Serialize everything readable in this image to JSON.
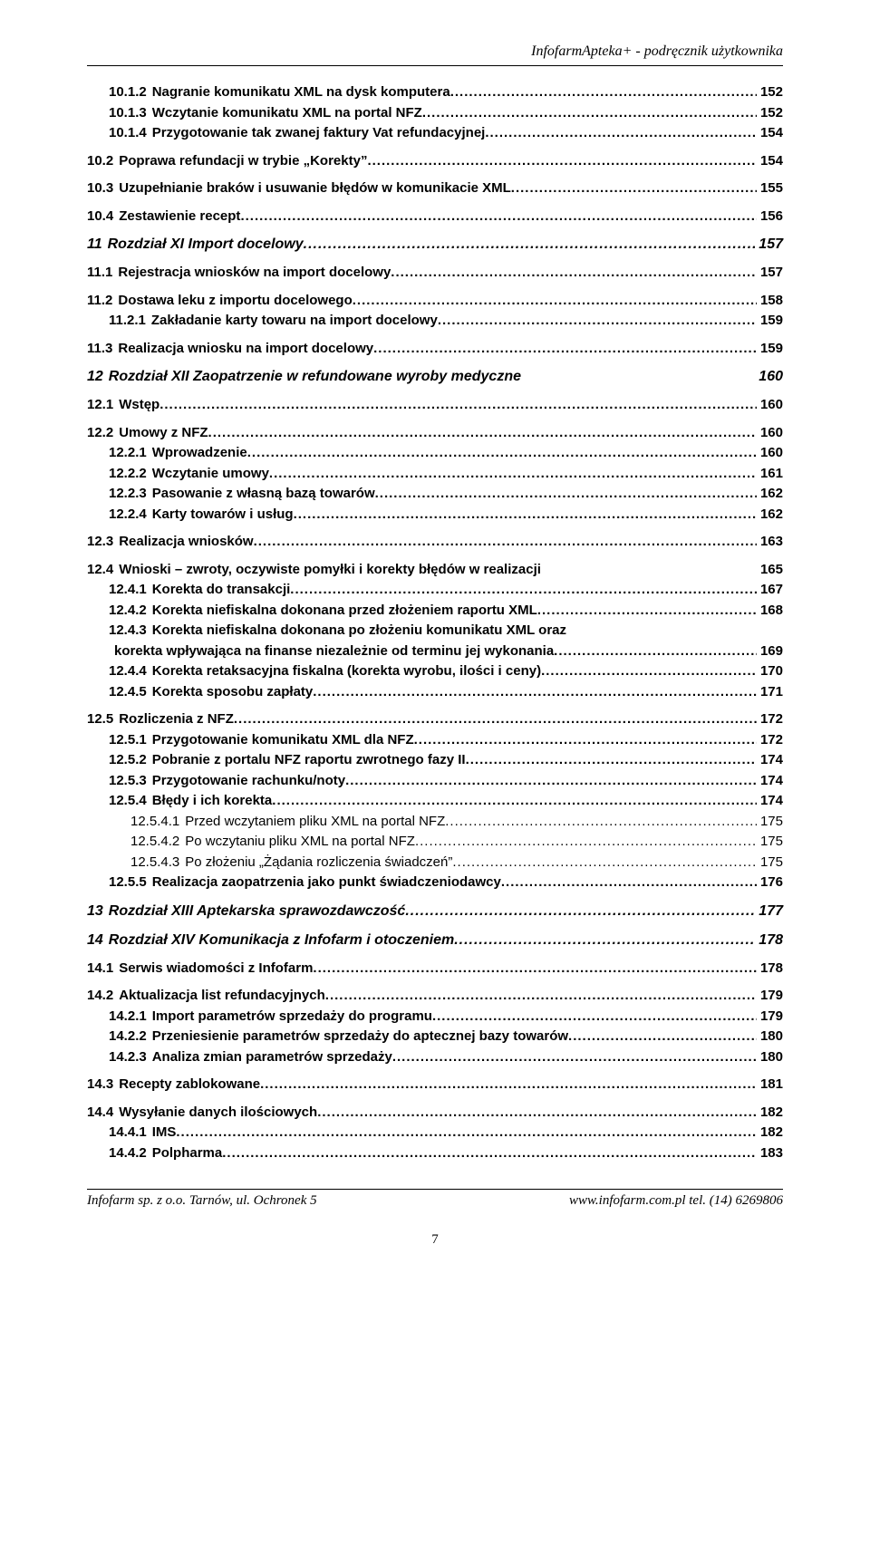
{
  "header": {
    "title": "InfofarmApteka+ - podręcznik użytkownika"
  },
  "toc": [
    {
      "lvl": 3,
      "num": "10.1.2",
      "title": "Nagranie komunikatu XML na dysk komputera",
      "page": "152",
      "bold": true
    },
    {
      "lvl": 3,
      "num": "10.1.3",
      "title": "Wczytanie komunikatu XML na portal NFZ",
      "page": "152",
      "bold": true
    },
    {
      "lvl": 3,
      "num": "10.1.4",
      "title": "Przygotowanie tak zwanej faktury Vat refundacyjnej",
      "page": "154",
      "bold": true
    },
    {
      "lvl": 2,
      "num": "10.2",
      "title": "Poprawa refundacji w trybie „Korekty”",
      "page": "154",
      "bold": true,
      "gap": "sm"
    },
    {
      "lvl": 2,
      "num": "10.3",
      "title": "Uzupełnianie braków i usuwanie błędów w komunikacie XML",
      "page": "155",
      "bold": true,
      "gap": "sm"
    },
    {
      "lvl": 2,
      "num": "10.4",
      "title": "Zestawienie recept",
      "page": "156",
      "bold": true,
      "gap": "sm"
    },
    {
      "lvl": 1,
      "num": "11",
      "title": "Rozdział XI  Import docelowy",
      "page": "157",
      "chapter": true,
      "gap": "sm"
    },
    {
      "lvl": 2,
      "num": "11.1",
      "title": "Rejestracja wniosków na import docelowy",
      "page": "157",
      "bold": true,
      "gap": "sm"
    },
    {
      "lvl": 2,
      "num": "11.2",
      "title": "Dostawa leku z importu docelowego",
      "page": "158",
      "bold": true,
      "gap": "sm"
    },
    {
      "lvl": 3,
      "num": "11.2.1",
      "title": "Zakładanie karty towaru na import docelowy",
      "page": "159",
      "bold": true
    },
    {
      "lvl": 2,
      "num": "11.3",
      "title": "Realizacja wniosku na import docelowy",
      "page": "159",
      "bold": true,
      "gap": "sm"
    },
    {
      "lvl": 1,
      "num": "12",
      "title": "Rozdział XII Zaopatrzenie w refundowane wyroby medyczne",
      "page": "160",
      "chapter": true,
      "noleader": true,
      "gap": "sm"
    },
    {
      "lvl": 2,
      "num": "12.1",
      "title": "Wstęp",
      "page": "160",
      "bold": true,
      "gap": "sm"
    },
    {
      "lvl": 2,
      "num": "12.2",
      "title": "Umowy z NFZ",
      "page": "160",
      "bold": true,
      "gap": "sm"
    },
    {
      "lvl": 3,
      "num": "12.2.1",
      "title": "Wprowadzenie",
      "page": "160",
      "bold": true
    },
    {
      "lvl": 3,
      "num": "12.2.2",
      "title": "Wczytanie umowy",
      "page": "161",
      "bold": true
    },
    {
      "lvl": 3,
      "num": "12.2.3",
      "title": "Pasowanie z własną bazą towarów",
      "page": "162",
      "bold": true
    },
    {
      "lvl": 3,
      "num": "12.2.4",
      "title": "Karty towarów i usług",
      "page": "162",
      "bold": true
    },
    {
      "lvl": 2,
      "num": "12.3",
      "title": "Realizacja wniosków",
      "page": "163",
      "bold": true,
      "gap": "sm"
    },
    {
      "lvl": 2,
      "num": "12.4",
      "title": "Wnioski – zwroty, oczywiste pomyłki i korekty błędów w realizacji",
      "page": "165",
      "bold": true,
      "noleader": true,
      "gap": "sm"
    },
    {
      "lvl": 3,
      "num": "12.4.1",
      "title": "Korekta do transakcji",
      "page": "167",
      "bold": true
    },
    {
      "lvl": 3,
      "num": "12.4.2",
      "title": "Korekta niefiskalna dokonana przed złożeniem raportu XML",
      "page": "168",
      "bold": true
    },
    {
      "lvl": 3,
      "num": "12.4.3",
      "title": "Korekta niefiskalna dokonana po złożeniu komunikatu XML oraz",
      "page": "",
      "bold": true,
      "noleader": true,
      "nopage": true
    },
    {
      "lvl": 3,
      "num": "",
      "title": "korekta wpływająca na finanse niezależnie od terminu jej wykonania",
      "page": "169",
      "bold": true
    },
    {
      "lvl": 3,
      "num": "12.4.4",
      "title": "Korekta retaksacyjna fiskalna (korekta wyrobu, ilości i ceny)",
      "page": "170",
      "bold": true
    },
    {
      "lvl": 3,
      "num": "12.4.5",
      "title": "Korekta sposobu zapłaty",
      "page": "171",
      "bold": true
    },
    {
      "lvl": 2,
      "num": "12.5",
      "title": "Rozliczenia z NFZ",
      "page": "172",
      "bold": true,
      "gap": "sm"
    },
    {
      "lvl": 3,
      "num": "12.5.1",
      "title": "Przygotowanie komunikatu XML dla NFZ",
      "page": "172",
      "bold": true
    },
    {
      "lvl": 3,
      "num": "12.5.2",
      "title": "Pobranie z portalu NFZ raportu zwrotnego fazy II",
      "page": "174",
      "bold": true
    },
    {
      "lvl": 3,
      "num": "12.5.3",
      "title": "Przygotowanie rachunku/noty",
      "page": "174",
      "bold": true
    },
    {
      "lvl": 3,
      "num": "12.5.4",
      "title": "Błędy i ich korekta",
      "page": "174",
      "bold": true
    },
    {
      "lvl": 4,
      "num": "12.5.4.1",
      "title": "Przed wczytaniem pliku XML na portal NFZ",
      "page": "175"
    },
    {
      "lvl": 4,
      "num": "12.5.4.2",
      "title": "Po wczytaniu pliku XML na portal NFZ",
      "page": "175"
    },
    {
      "lvl": 4,
      "num": "12.5.4.3",
      "title": "Po złożeniu „Żądania rozliczenia świadczeń”",
      "page": "175"
    },
    {
      "lvl": 3,
      "num": "12.5.5",
      "title": "Realizacja zaopatrzenia jako punkt świadczeniodawcy",
      "page": "176",
      "bold": true
    },
    {
      "lvl": 1,
      "num": "13",
      "title": "Rozdział XIII Aptekarska sprawozdawczość",
      "page": "177",
      "chapter": true,
      "gap": "sm"
    },
    {
      "lvl": 1,
      "num": "14",
      "title": "Rozdział XIV Komunikacja z Infofarm i otoczeniem",
      "page": "178",
      "chapter": true,
      "gap": "sm"
    },
    {
      "lvl": 2,
      "num": "14.1",
      "title": "Serwis wiadomości z Infofarm",
      "page": "178",
      "bold": true,
      "gap": "sm"
    },
    {
      "lvl": 2,
      "num": "14.2",
      "title": "Aktualizacja list refundacyjnych",
      "page": "179",
      "bold": true,
      "gap": "sm"
    },
    {
      "lvl": 3,
      "num": "14.2.1",
      "title": "Import parametrów sprzedaży do programu",
      "page": "179",
      "bold": true
    },
    {
      "lvl": 3,
      "num": "14.2.2",
      "title": "Przeniesienie parametrów sprzedaży do aptecznej bazy towarów",
      "page": "180",
      "bold": true
    },
    {
      "lvl": 3,
      "num": "14.2.3",
      "title": "Analiza zmian parametrów sprzedaży",
      "page": "180",
      "bold": true
    },
    {
      "lvl": 2,
      "num": "14.3",
      "title": "Recepty zablokowane",
      "page": "181",
      "bold": true,
      "gap": "sm"
    },
    {
      "lvl": 2,
      "num": "14.4",
      "title": "Wysyłanie danych ilościowych",
      "page": "182",
      "bold": true,
      "gap": "sm"
    },
    {
      "lvl": 3,
      "num": "14.4.1",
      "title": "IMS",
      "page": "182",
      "bold": true
    },
    {
      "lvl": 3,
      "num": "14.4.2",
      "title": "Polpharma",
      "page": "183",
      "bold": true
    }
  ],
  "footer": {
    "left": "Infofarm sp. z o.o. Tarnów, ul. Ochronek 5",
    "right": "www.infofarm.com.pl  tel. (14) 6269806",
    "page_num": "7"
  }
}
